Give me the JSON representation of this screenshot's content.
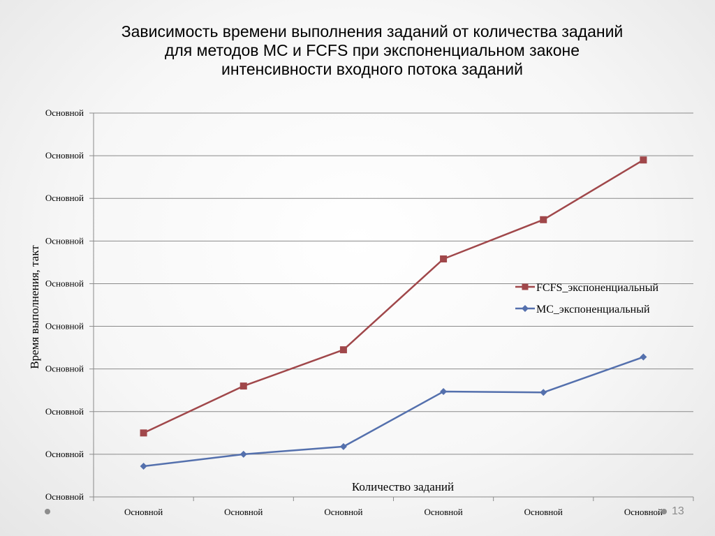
{
  "slide": {
    "title_lines": [
      "Зависимость  времени выполнения заданий от количества заданий",
      "для методов МС и FCFS при экспоненциальном законе",
      "интенсивности входного потока заданий"
    ],
    "page_number": "13"
  },
  "chart_data": {
    "type": "line",
    "xlabel": "Количество заданий",
    "ylabel": "Время выполнения, такт",
    "categories": [
      "Основной",
      "Основной",
      "Основной",
      "Основной",
      "Основной",
      "Основной"
    ],
    "y_tick_labels": [
      "Основной",
      "Основной",
      "Основной",
      "Основной",
      "Основной",
      "Основной",
      "Основной",
      "Основной",
      "Основной",
      "Основной"
    ],
    "ylim": [
      0,
      9
    ],
    "grid": true,
    "legend_position": "right",
    "series": [
      {
        "name": "FCFS_экспоненциальный",
        "color": "#A0474A",
        "marker": "square",
        "values": [
          1.5,
          2.6,
          3.45,
          5.58,
          6.5,
          7.9
        ]
      },
      {
        "name": "МС_экспоненциальный",
        "color": "#5470AD",
        "marker": "diamond",
        "values": [
          0.72,
          1.0,
          1.18,
          2.47,
          2.45,
          3.28
        ]
      }
    ]
  }
}
